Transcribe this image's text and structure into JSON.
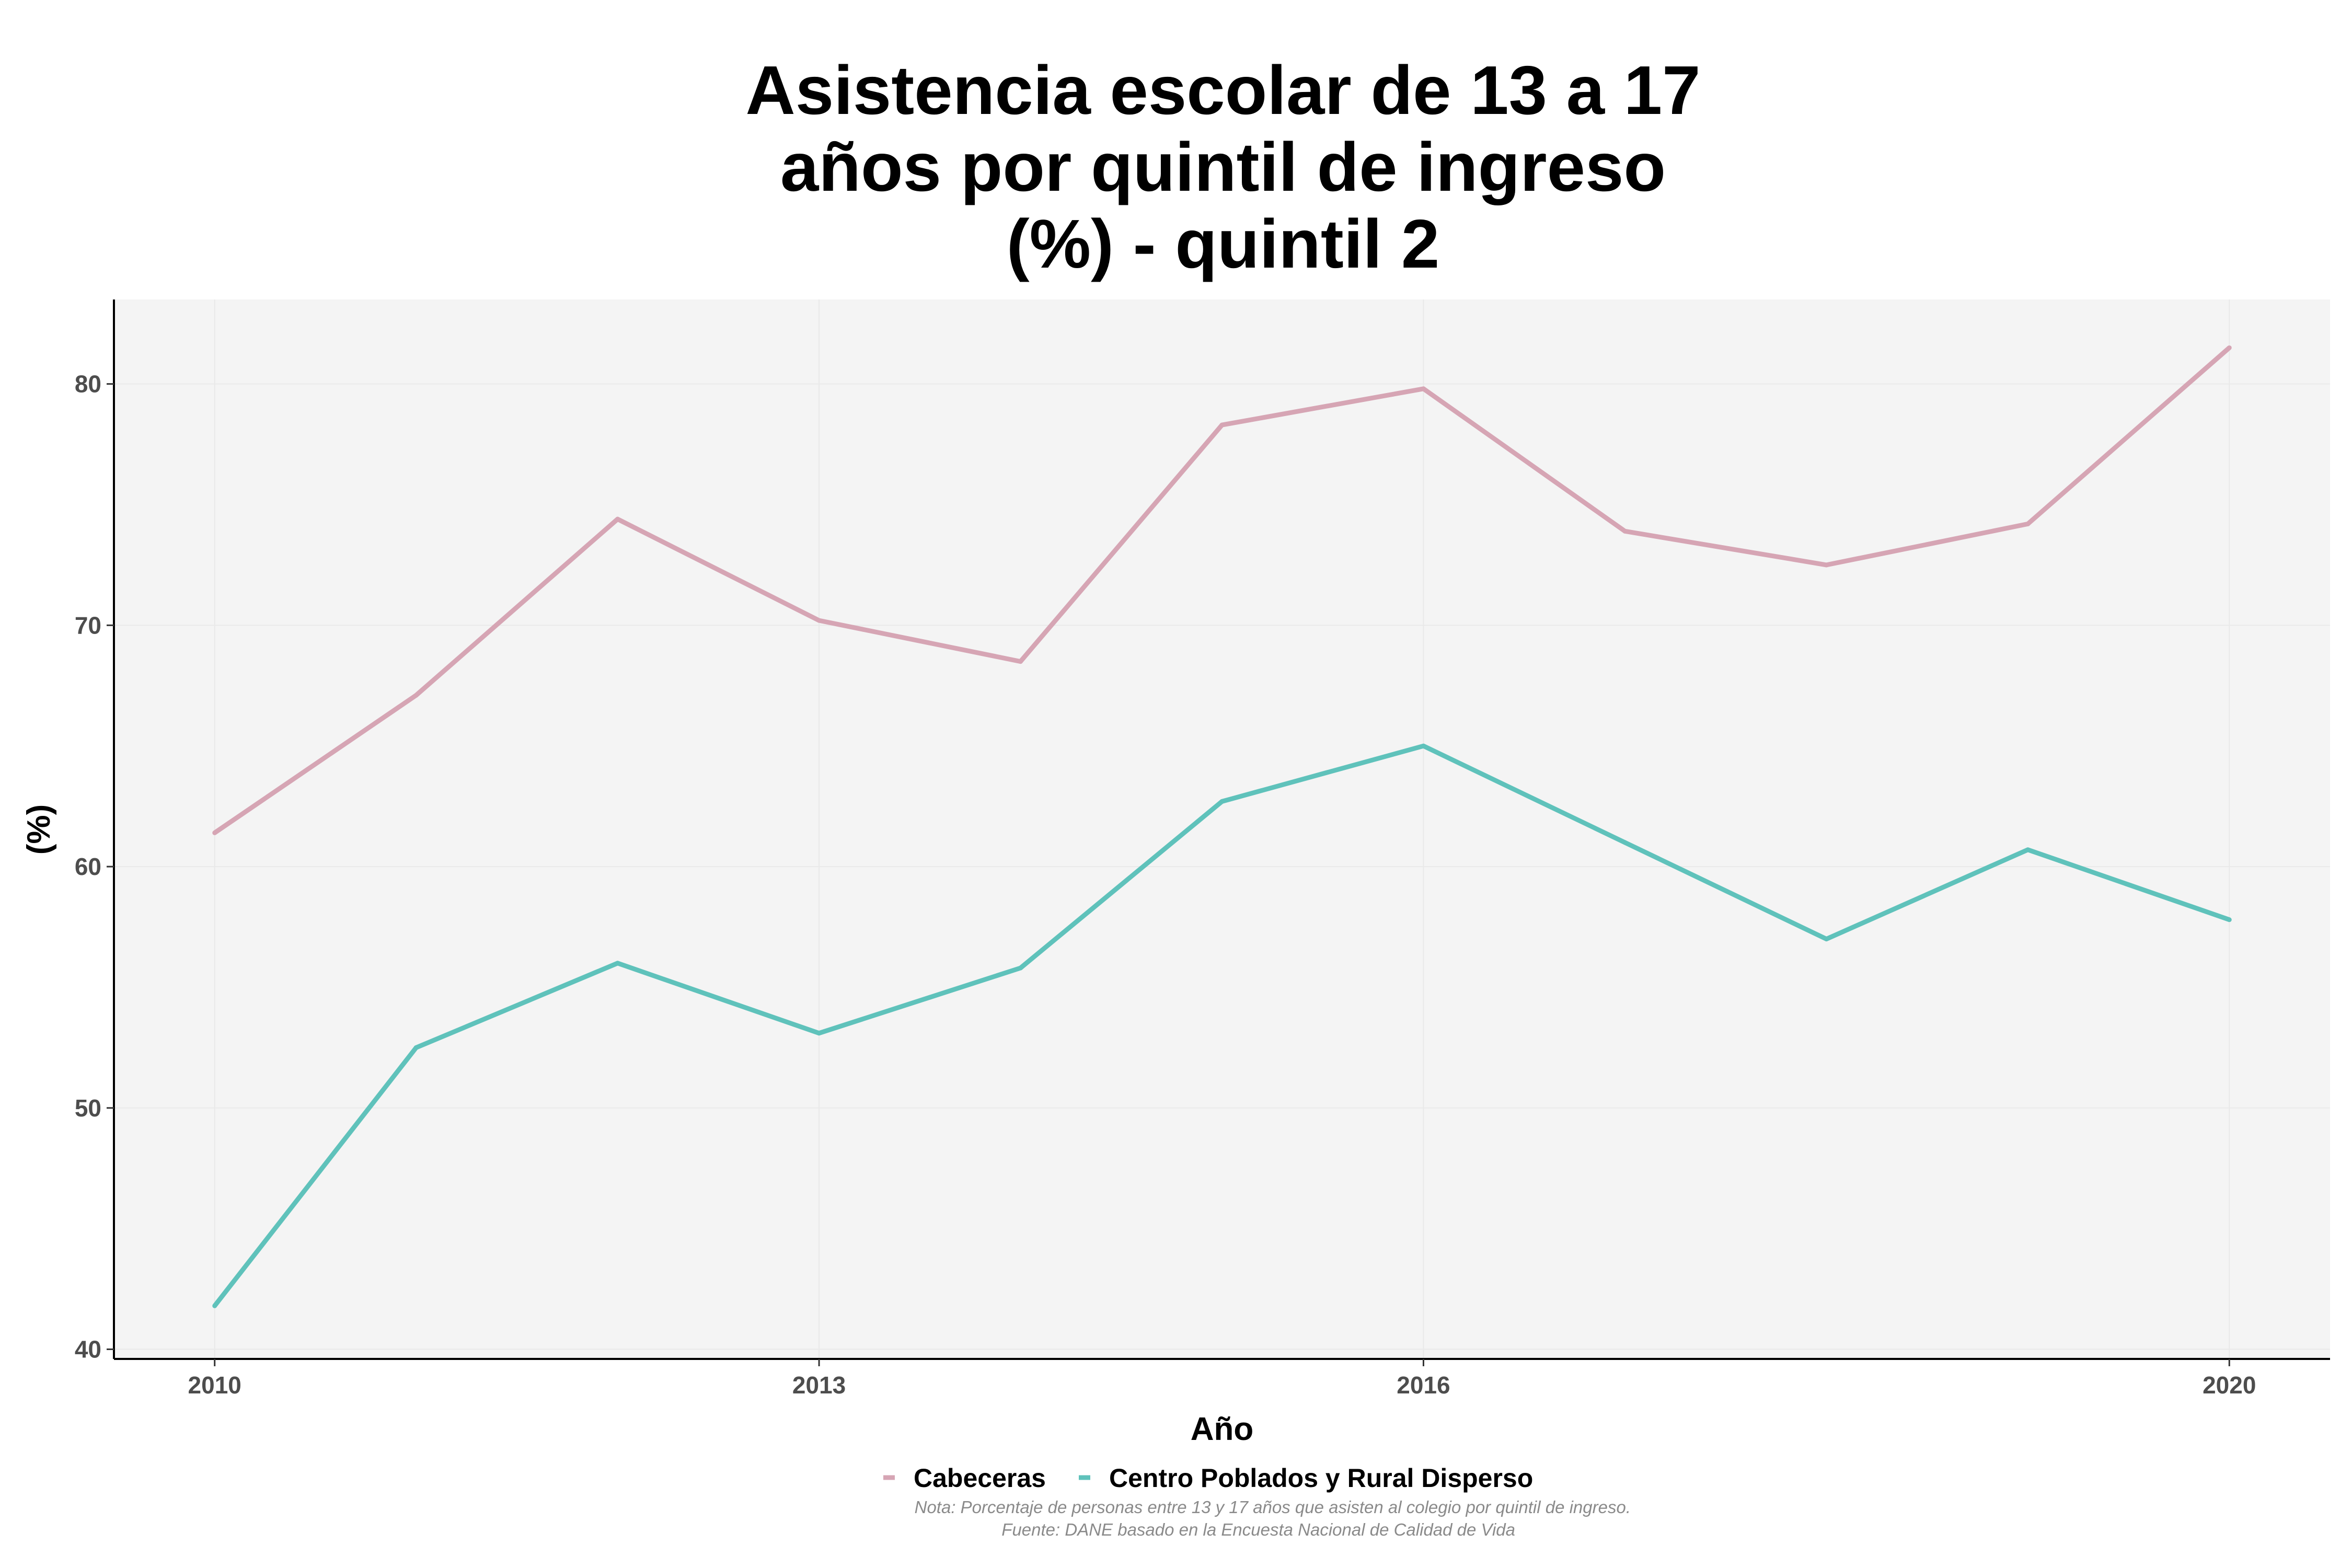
{
  "chart_data": {
    "type": "line",
    "title_lines": [
      "Asistencia escolar de 13 a 17",
      "años por quintil de ingreso",
      "(%) - quintil 2"
    ],
    "xlabel": "Año",
    "ylabel": "(%)",
    "x": [
      2010,
      2011,
      2012,
      2013,
      2014,
      2015,
      2016,
      2017,
      2018,
      2019,
      2020
    ],
    "xticks": [
      2010,
      2013,
      2016,
      2020
    ],
    "yticks": [
      40,
      50,
      60,
      70,
      80
    ],
    "xlim": [
      2009.5,
      2020.5
    ],
    "ylim": [
      39.6,
      83.5
    ],
    "grid": true,
    "legend_position": "bottom",
    "series": [
      {
        "name": "Cabeceras",
        "color": "#d6a5b4",
        "values": [
          61.4,
          67.1,
          74.4,
          70.2,
          68.5,
          78.3,
          79.8,
          73.9,
          72.5,
          74.2,
          81.5
        ]
      },
      {
        "name": "Centro Poblados y Rural Disperso",
        "color": "#5fc2bb",
        "values": [
          41.8,
          52.5,
          56.0,
          53.1,
          55.8,
          62.7,
          65.0,
          61.0,
          57.0,
          60.7,
          57.8
        ]
      }
    ],
    "caption_lines": [
      "Nota: Porcentaje de personas entre 13 y 17 años que asisten al colegio por quintil de ingreso.",
      "Fuente: DANE basado en la Encuesta Nacional de Calidad de Vida"
    ]
  }
}
